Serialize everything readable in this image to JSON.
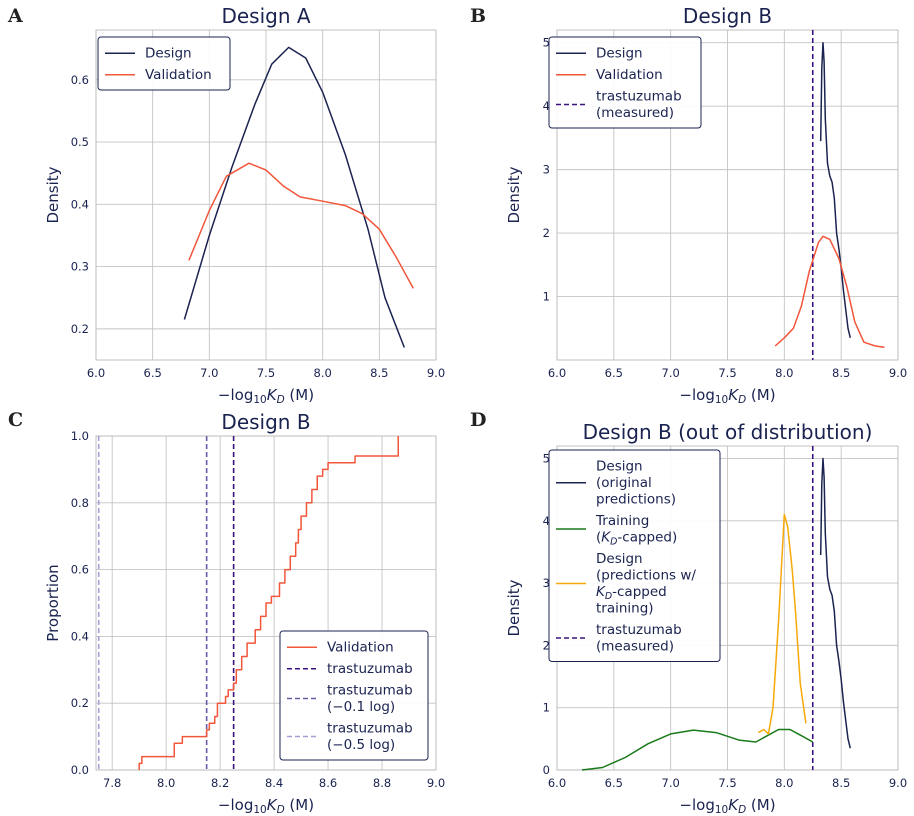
{
  "colors": {
    "design": "#1b2451",
    "validation": "#f2563b",
    "training": "#1a7a1a",
    "capped_design": "#f7a90a",
    "trastuzumab": "#3b1280",
    "trast_01": "#6a5aa6",
    "trast_05": "#a89cd6"
  },
  "chart_data": [
    {
      "panel": "A",
      "type": "line",
      "title": "Design A",
      "xlabel": "−log₁₀K_D (M)",
      "ylabel": "Density",
      "xlim": [
        6.0,
        9.0
      ],
      "ylim": [
        0.15,
        0.68
      ],
      "x_ticks": [
        "6.0",
        "6.5",
        "7.0",
        "7.5",
        "8.0",
        "8.5",
        "9.0"
      ],
      "y_ticks": [
        "0.2",
        "0.3",
        "0.4",
        "0.5",
        "0.6"
      ],
      "legend_position": "top-left",
      "series": [
        {
          "name": "Design",
          "color_key": "design",
          "points": [
            [
              6.78,
              0.215
            ],
            [
              7.0,
              0.35
            ],
            [
              7.2,
              0.46
            ],
            [
              7.4,
              0.56
            ],
            [
              7.55,
              0.625
            ],
            [
              7.7,
              0.652
            ],
            [
              7.85,
              0.635
            ],
            [
              8.0,
              0.58
            ],
            [
              8.2,
              0.48
            ],
            [
              8.4,
              0.36
            ],
            [
              8.55,
              0.25
            ],
            [
              8.72,
              0.17
            ]
          ]
        },
        {
          "name": "Validation",
          "color_key": "validation",
          "points": [
            [
              6.82,
              0.31
            ],
            [
              7.0,
              0.39
            ],
            [
              7.15,
              0.445
            ],
            [
              7.35,
              0.466
            ],
            [
              7.5,
              0.455
            ],
            [
              7.65,
              0.43
            ],
            [
              7.8,
              0.412
            ],
            [
              8.0,
              0.405
            ],
            [
              8.2,
              0.398
            ],
            [
              8.35,
              0.385
            ],
            [
              8.5,
              0.36
            ],
            [
              8.65,
              0.315
            ],
            [
              8.8,
              0.265
            ]
          ]
        }
      ]
    },
    {
      "panel": "B",
      "type": "line",
      "title": "Design B",
      "xlabel": "−log₁₀K_D (M)",
      "ylabel": "Density",
      "xlim": [
        6.0,
        9.0
      ],
      "ylim": [
        0.0,
        5.2
      ],
      "x_ticks": [
        "6.0",
        "6.5",
        "7.0",
        "7.5",
        "8.0",
        "8.5",
        "9.0"
      ],
      "y_ticks": [
        "1",
        "2",
        "3",
        "4",
        "5"
      ],
      "legend_position": "top-left",
      "series": [
        {
          "name": "Design",
          "color_key": "design",
          "points": [
            [
              8.32,
              3.45
            ],
            [
              8.33,
              4.6
            ],
            [
              8.34,
              5.0
            ],
            [
              8.35,
              4.7
            ],
            [
              8.36,
              3.8
            ],
            [
              8.38,
              3.1
            ],
            [
              8.4,
              2.9
            ],
            [
              8.42,
              2.8
            ],
            [
              8.44,
              2.55
            ],
            [
              8.46,
              2.0
            ],
            [
              8.48,
              1.75
            ],
            [
              8.5,
              1.45
            ],
            [
              8.52,
              1.1
            ],
            [
              8.54,
              0.8
            ],
            [
              8.56,
              0.5
            ],
            [
              8.58,
              0.35
            ]
          ]
        },
        {
          "name": "Validation",
          "color_key": "validation",
          "points": [
            [
              7.92,
              0.22
            ],
            [
              8.0,
              0.35
            ],
            [
              8.08,
              0.5
            ],
            [
              8.15,
              0.85
            ],
            [
              8.22,
              1.4
            ],
            [
              8.3,
              1.85
            ],
            [
              8.34,
              1.95
            ],
            [
              8.4,
              1.9
            ],
            [
              8.48,
              1.6
            ],
            [
              8.55,
              1.15
            ],
            [
              8.62,
              0.6
            ],
            [
              8.7,
              0.28
            ],
            [
              8.8,
              0.22
            ],
            [
              8.88,
              0.2
            ]
          ]
        }
      ],
      "vlines": [
        {
          "name": "trastuzumab\n(measured)",
          "x": 8.25,
          "color_key": "trastuzumab"
        }
      ]
    },
    {
      "panel": "C",
      "type": "step",
      "title": "Design B",
      "xlabel": "−log₁₀K_D (M)",
      "ylabel": "Proportion",
      "xlim": [
        7.74,
        9.0
      ],
      "ylim": [
        0.0,
        1.0
      ],
      "x_ticks": [
        "7.8",
        "8.0",
        "8.2",
        "8.4",
        "8.6",
        "8.8",
        "9.0"
      ],
      "y_ticks": [
        "0.0",
        "0.2",
        "0.4",
        "0.6",
        "0.8",
        "1.0"
      ],
      "legend_position": "bottom-right",
      "series": [
        {
          "name": "Validation",
          "color_key": "validation",
          "points": [
            [
              7.9,
              0.0
            ],
            [
              7.9,
              0.02
            ],
            [
              7.91,
              0.04
            ],
            [
              8.03,
              0.08
            ],
            [
              8.06,
              0.1
            ],
            [
              8.15,
              0.12
            ],
            [
              8.16,
              0.14
            ],
            [
              8.18,
              0.16
            ],
            [
              8.19,
              0.2
            ],
            [
              8.22,
              0.22
            ],
            [
              8.23,
              0.24
            ],
            [
              8.25,
              0.26
            ],
            [
              8.26,
              0.3
            ],
            [
              8.28,
              0.34
            ],
            [
              8.3,
              0.38
            ],
            [
              8.33,
              0.42
            ],
            [
              8.35,
              0.46
            ],
            [
              8.37,
              0.5
            ],
            [
              8.39,
              0.52
            ],
            [
              8.42,
              0.56
            ],
            [
              8.44,
              0.6
            ],
            [
              8.46,
              0.64
            ],
            [
              8.48,
              0.68
            ],
            [
              8.49,
              0.72
            ],
            [
              8.5,
              0.76
            ],
            [
              8.52,
              0.8
            ],
            [
              8.54,
              0.84
            ],
            [
              8.56,
              0.88
            ],
            [
              8.58,
              0.9
            ],
            [
              8.6,
              0.92
            ],
            [
              8.7,
              0.94
            ],
            [
              8.86,
              0.98
            ],
            [
              8.86,
              1.0
            ]
          ]
        }
      ],
      "vlines": [
        {
          "name": "trastuzumab",
          "x": 8.25,
          "color_key": "trastuzumab"
        },
        {
          "name": "trastuzumab\n(−0.1 log)",
          "x": 8.15,
          "color_key": "trast_01"
        },
        {
          "name": "trastuzumab\n(−0.5 log)",
          "x": 7.75,
          "color_key": "trast_05"
        }
      ]
    },
    {
      "panel": "D",
      "type": "line",
      "title": "Design B (out of distribution)",
      "xlabel": "−log₁₀K_D (M)",
      "ylabel": "Density",
      "xlim": [
        6.0,
        9.0
      ],
      "ylim": [
        0.0,
        5.2
      ],
      "x_ticks": [
        "6.0",
        "6.5",
        "7.0",
        "7.5",
        "8.0",
        "8.5",
        "9.0"
      ],
      "y_ticks": [
        "0",
        "1",
        "2",
        "3",
        "4",
        "5"
      ],
      "legend_position": "top-left",
      "series": [
        {
          "name": "Design\n(original\npredictions)",
          "color_key": "design",
          "points": [
            [
              8.32,
              3.45
            ],
            [
              8.33,
              4.6
            ],
            [
              8.34,
              5.0
            ],
            [
              8.35,
              4.7
            ],
            [
              8.36,
              3.8
            ],
            [
              8.38,
              3.1
            ],
            [
              8.4,
              2.9
            ],
            [
              8.42,
              2.8
            ],
            [
              8.44,
              2.55
            ],
            [
              8.46,
              2.0
            ],
            [
              8.48,
              1.75
            ],
            [
              8.5,
              1.45
            ],
            [
              8.52,
              1.1
            ],
            [
              8.54,
              0.8
            ],
            [
              8.56,
              0.5
            ],
            [
              8.58,
              0.35
            ]
          ]
        },
        {
          "name": "Training\n(K_D-capped)",
          "color_key": "training",
          "points": [
            [
              6.22,
              0.0
            ],
            [
              6.4,
              0.04
            ],
            [
              6.6,
              0.2
            ],
            [
              6.8,
              0.42
            ],
            [
              7.0,
              0.58
            ],
            [
              7.2,
              0.64
            ],
            [
              7.4,
              0.6
            ],
            [
              7.6,
              0.48
            ],
            [
              7.75,
              0.45
            ],
            [
              7.85,
              0.55
            ],
            [
              7.95,
              0.65
            ],
            [
              8.05,
              0.65
            ],
            [
              8.15,
              0.55
            ],
            [
              8.25,
              0.45
            ]
          ]
        },
        {
          "name": "Design\n(predictions w/\nK_D-capped\ntraining)",
          "color_key": "capped_design",
          "points": [
            [
              7.77,
              0.6
            ],
            [
              7.82,
              0.65
            ],
            [
              7.86,
              0.58
            ],
            [
              7.9,
              1.0
            ],
            [
              7.95,
              2.4
            ],
            [
              8.0,
              4.1
            ],
            [
              8.03,
              3.9
            ],
            [
              8.07,
              3.2
            ],
            [
              8.1,
              2.5
            ],
            [
              8.14,
              1.4
            ],
            [
              8.19,
              0.75
            ]
          ]
        }
      ],
      "vlines": [
        {
          "name": "trastuzumab\n(measured)",
          "x": 8.25,
          "color_key": "trastuzumab"
        }
      ]
    }
  ]
}
